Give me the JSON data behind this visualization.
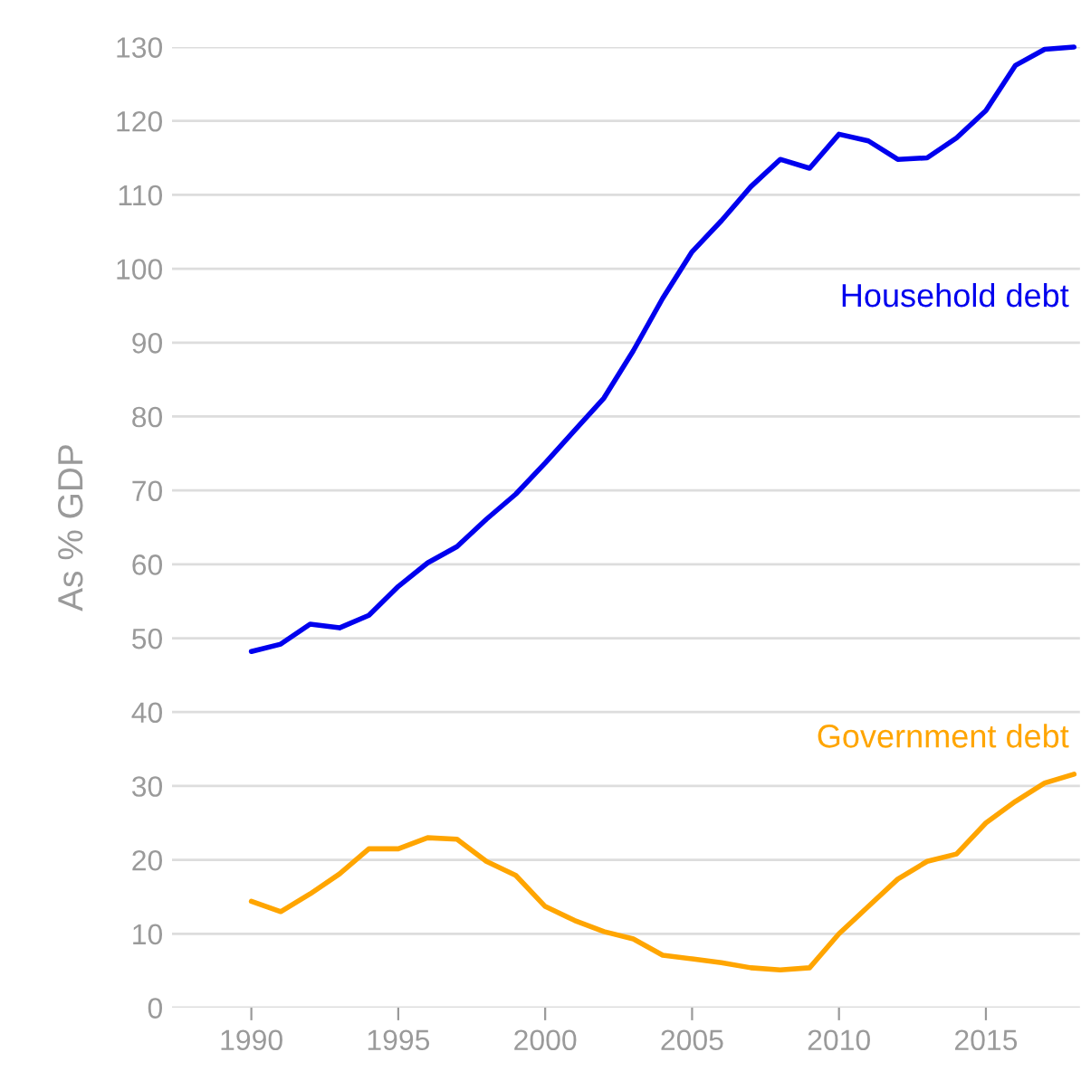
{
  "chart_data": {
    "type": "line",
    "ylabel": "As % GDP",
    "x": [
      1990,
      1991,
      1992,
      1993,
      1994,
      1995,
      1996,
      1997,
      1998,
      1999,
      2000,
      2001,
      2002,
      2003,
      2004,
      2005,
      2006,
      2007,
      2008,
      2009,
      2010,
      2011,
      2012,
      2013,
      2014,
      2015,
      2016,
      2017,
      2018
    ],
    "series": [
      {
        "name": "Household debt",
        "color": "#0000ee",
        "values": [
          48.2,
          49.2,
          51.9,
          51.4,
          53.1,
          57,
          60.2,
          62.4,
          66.1,
          69.5,
          73.7,
          78.1,
          82.5,
          88.9,
          96,
          102.3,
          106.5,
          111.1,
          114.8,
          113.6,
          118.2,
          117.3,
          114.8,
          115,
          117.7,
          121.4,
          127.5,
          129.7,
          130
        ]
      },
      {
        "name": "Government debt",
        "color": "#ffa500",
        "values": [
          14.4,
          13,
          15.4,
          18.1,
          21.5,
          21.5,
          23,
          22.8,
          19.8,
          17.9,
          13.7,
          11.8,
          10.3,
          9.3,
          7.1,
          6.6,
          6.1,
          5.4,
          5.1,
          5.4,
          10,
          13.7,
          17.4,
          19.8,
          20.8,
          25,
          27.9,
          30.4,
          31.6
        ]
      }
    ],
    "xlim": [
      1987.3,
      2018.2
    ],
    "ylim": [
      0,
      130
    ],
    "xticks": [
      1990,
      1995,
      2000,
      2005,
      2010,
      2015
    ],
    "yticks": [
      0,
      10,
      20,
      30,
      40,
      50,
      60,
      70,
      80,
      90,
      100,
      110,
      120,
      130
    ],
    "grid": "y",
    "legend": false
  }
}
